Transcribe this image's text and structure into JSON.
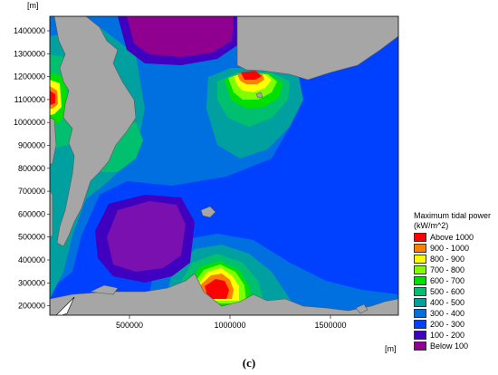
{
  "axes": {
    "y_unit": "[m]",
    "x_unit": "[m]",
    "y_ticks": [
      "1400000",
      "1300000",
      "1200000",
      "1100000",
      "1000000",
      "900000",
      "800000",
      "700000",
      "600000",
      "500000",
      "400000",
      "300000",
      "200000"
    ],
    "x_ticks": [
      "500000",
      "1000000",
      "1500000"
    ]
  },
  "legend": {
    "title_line1": "Maximum tidal power",
    "title_line2": "(kW/m^2)",
    "items": [
      {
        "label": "Above 1000",
        "color": "#ff0000"
      },
      {
        "label": "900 - 1000",
        "color": "#ff7f00"
      },
      {
        "label": "800 -  900",
        "color": "#ffff00"
      },
      {
        "label": "700 -  800",
        "color": "#7fff00"
      },
      {
        "label": "600 -  700",
        "color": "#00e000"
      },
      {
        "label": "500 -  600",
        "color": "#00c070"
      },
      {
        "label": "400 -  500",
        "color": "#00a0a0"
      },
      {
        "label": "300 -  400",
        "color": "#0070e0"
      },
      {
        "label": "200 -  300",
        "color": "#0040ff"
      },
      {
        "label": "100 -  200",
        "color": "#4000c0"
      },
      {
        "label": "Below   100",
        "color": "#900090"
      }
    ]
  },
  "caption": "(c)",
  "colors": {
    "land": "#a6a6a6",
    "coast": "#5a5a5a"
  }
}
